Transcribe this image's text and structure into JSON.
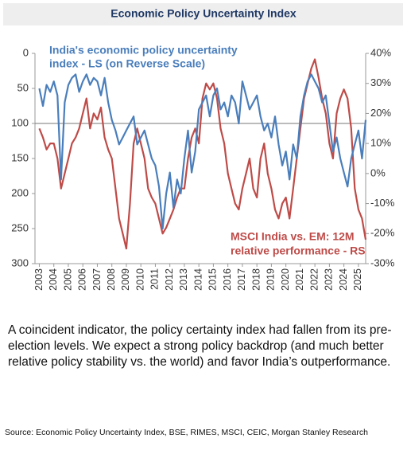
{
  "chart_data": {
    "type": "line",
    "title": "Economic Policy Uncertainty Index",
    "annotations": [
      "India's economic policy uncertainty",
      "index - LS (on Reverse Scale)",
      "MSCI India vs. EM: 12M",
      "relative performance - RS"
    ],
    "x": [
      2003,
      2003.25,
      2003.5,
      2003.75,
      2004,
      2004.25,
      2004.5,
      2004.75,
      2005,
      2005.25,
      2005.5,
      2005.75,
      2006,
      2006.25,
      2006.5,
      2006.75,
      2007,
      2007.25,
      2007.5,
      2007.75,
      2008,
      2008.25,
      2008.5,
      2008.75,
      2009,
      2009.25,
      2009.5,
      2009.75,
      2010,
      2010.25,
      2010.5,
      2010.75,
      2011,
      2011.25,
      2011.5,
      2011.75,
      2012,
      2012.25,
      2012.5,
      2012.75,
      2013,
      2013.25,
      2013.5,
      2013.75,
      2014,
      2014.25,
      2014.5,
      2014.75,
      2015,
      2015.25,
      2015.5,
      2015.75,
      2016,
      2016.25,
      2016.5,
      2016.75,
      2017,
      2017.25,
      2017.5,
      2017.75,
      2018,
      2018.25,
      2018.5,
      2018.75,
      2019,
      2019.25,
      2019.5,
      2019.75,
      2020,
      2020.25,
      2020.5,
      2020.75,
      2021,
      2021.25,
      2021.5,
      2021.75,
      2022,
      2022.25,
      2022.5,
      2022.75,
      2023,
      2023.25,
      2023.5,
      2023.75,
      2024,
      2024.25,
      2024.5,
      2024.75,
      2025,
      2025.25,
      2025.5
    ],
    "series": [
      {
        "name": "India's economic policy uncertainty index - LS",
        "color": "#4a7ebb",
        "axis": "y",
        "values": [
          50,
          75,
          45,
          55,
          40,
          60,
          180,
          70,
          45,
          35,
          30,
          55,
          40,
          30,
          45,
          35,
          40,
          60,
          35,
          70,
          95,
          110,
          130,
          120,
          110,
          100,
          90,
          130,
          120,
          110,
          130,
          150,
          160,
          190,
          250,
          200,
          170,
          220,
          180,
          200,
          150,
          110,
          170,
          140,
          80,
          70,
          60,
          90,
          60,
          50,
          80,
          70,
          90,
          60,
          70,
          100,
          40,
          60,
          80,
          70,
          60,
          90,
          110,
          100,
          120,
          90,
          130,
          160,
          140,
          180,
          130,
          150,
          90,
          60,
          40,
          30,
          40,
          50,
          70,
          60,
          100,
          140,
          120,
          150,
          170,
          190,
          150,
          130,
          110,
          150,
          95
        ]
      },
      {
        "name": "MSCI India vs. EM: 12M relative performance - RS",
        "color": "#be4b48",
        "axis": "y2",
        "values": [
          15,
          12,
          8,
          10,
          10,
          5,
          -5,
          0,
          5,
          10,
          12,
          15,
          20,
          25,
          15,
          20,
          18,
          22,
          12,
          8,
          5,
          -5,
          -15,
          -20,
          -25,
          -10,
          10,
          15,
          10,
          5,
          -5,
          -8,
          -10,
          -15,
          -20,
          -18,
          -15,
          -12,
          -8,
          -5,
          -5,
          5,
          12,
          15,
          10,
          25,
          30,
          28,
          30,
          25,
          15,
          10,
          0,
          -5,
          -10,
          -12,
          -5,
          0,
          5,
          -5,
          -8,
          5,
          10,
          0,
          -5,
          -12,
          -15,
          -10,
          -8,
          -15,
          -5,
          5,
          15,
          25,
          30,
          35,
          38,
          32,
          25,
          20,
          10,
          5,
          20,
          25,
          28,
          25,
          15,
          -5,
          -12,
          -15,
          -22
        ]
      }
    ],
    "xlim": [
      2002.7,
      2025.5
    ],
    "xticks": [
      2003,
      2004,
      2005,
      2006,
      2007,
      2008,
      2009,
      2010,
      2011,
      2012,
      2013,
      2014,
      2015,
      2016,
      2017,
      2018,
      2019,
      2020,
      2021,
      2022,
      2023,
      2024,
      2025
    ],
    "ylim": [
      0,
      300
    ],
    "y_reverse": true,
    "yticks": [
      0,
      50,
      100,
      150,
      200,
      250,
      300
    ],
    "hline": 100,
    "y2lim": [
      -30,
      40
    ],
    "y2ticks": [
      {
        "value": 40,
        "label": "40%"
      },
      {
        "value": 30,
        "label": "30%"
      },
      {
        "value": 20,
        "label": "20%"
      },
      {
        "value": 10,
        "label": "10%"
      },
      {
        "value": 0,
        "label": "0%"
      },
      {
        "value": -10,
        "label": "-10%"
      },
      {
        "value": -20,
        "label": "-20%"
      },
      {
        "value": -30,
        "label": "-30%"
      }
    ]
  },
  "body": "A coincident indicator, the policy certainty index had fallen from its pre-election levels. We expect a strong policy backdrop (and much better relative policy stability vs. the world) and favor India’s outperformance.",
  "source": "Source: Economic Policy Uncertainty Index, BSE, RIMES, MSCI, CEIC, Morgan Stanley Research"
}
